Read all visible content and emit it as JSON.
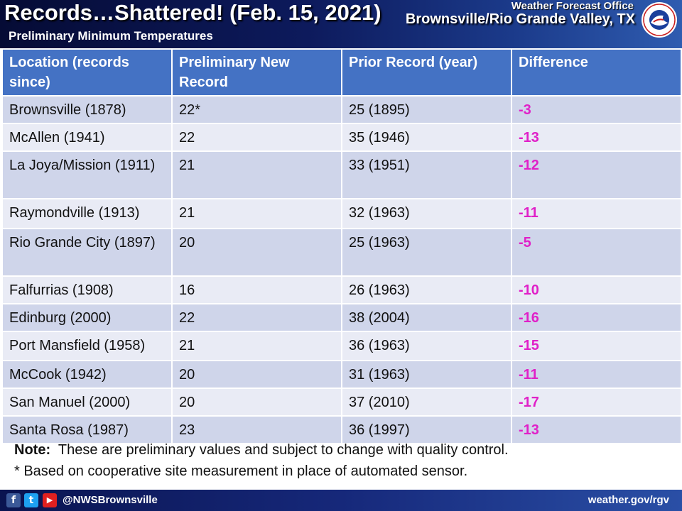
{
  "header": {
    "title": "Records…Shattered!  (Feb. 15, 2021)",
    "subtitle": "Preliminary Minimum Temperatures",
    "office": "Weather Forecast Office",
    "region": "Brownsville/Rio Grande Valley, TX",
    "logo_text": "NATIONAL WEATHER SERVICE"
  },
  "table": {
    "headers": [
      "Location (records since)",
      "Preliminary New Record",
      "Prior Record (year)",
      "Difference"
    ],
    "rows": [
      [
        "Brownsville (1878)",
        "22*",
        "25 (1895)",
        "-3"
      ],
      [
        "McAllen (1941)",
        "22",
        "35 (1946)",
        "-13"
      ],
      [
        "La Joya/Mission (1911)",
        "21",
        "33 (1951)",
        "-12"
      ],
      [
        "Raymondville (1913)",
        "21",
        "32 (1963)",
        "-11"
      ],
      [
        "Rio Grande City (1897)",
        "20",
        "25 (1963)",
        "-5"
      ],
      [
        "Falfurrias (1908)",
        "16",
        "26 (1963)",
        "-10"
      ],
      [
        "Edinburg (2000)",
        "22",
        "38 (2004)",
        "-16"
      ],
      [
        "Port Mansfield (1958)",
        "21",
        "36 (1963)",
        "-15"
      ],
      [
        "McCook (1942)",
        "20",
        "31 (1963)",
        "-11"
      ],
      [
        "San Manuel (2000)",
        "20",
        "37 (2010)",
        "-17"
      ],
      [
        "Santa Rosa (1987)",
        "23",
        "36 (1997)",
        "-13"
      ]
    ]
  },
  "notes": {
    "note_label": "Note:",
    "note_text": "  These are preliminary values and subject to change with quality control.",
    "footnote": "* Based on cooperative site measurement in place of automated sensor."
  },
  "footer": {
    "facebook_icon": "f",
    "twitter_icon": "t",
    "youtube_icon": "▶",
    "handle": "@NWSBrownsville",
    "website": "weather.gov/rgv"
  },
  "colors": {
    "header_bg": "#0d1a5c",
    "table_header": "#4472c4",
    "row_dark": "#cfd5ea",
    "row_light": "#e9ebf5",
    "difference": "#e020c8"
  }
}
